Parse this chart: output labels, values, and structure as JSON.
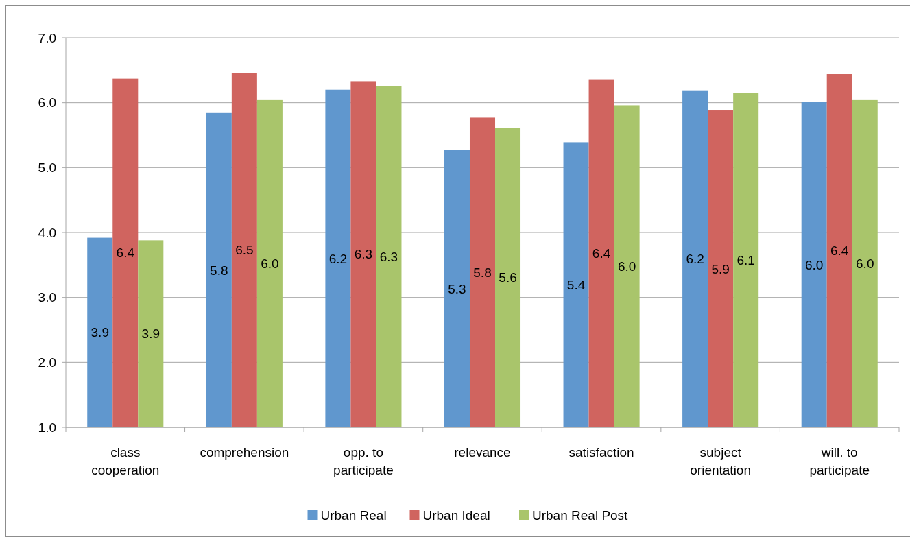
{
  "chart_data": {
    "type": "bar",
    "categories": [
      "class cooperation",
      "comprehension",
      "opp. to participate",
      "relevance",
      "satisfaction",
      "subject orientation",
      "will. to participate"
    ],
    "series": [
      {
        "name": "Urban Real",
        "color": "#6097ce",
        "values": [
          3.92,
          5.84,
          6.2,
          5.27,
          5.39,
          6.19,
          6.01
        ],
        "value_labels": [
          "3.9",
          "5.8",
          "6.2",
          "5.3",
          "5.4",
          "6.2",
          "6.0"
        ]
      },
      {
        "name": "Urban Ideal",
        "color": "#d0645f",
        "values": [
          6.37,
          6.46,
          6.33,
          5.77,
          6.36,
          5.88,
          6.44
        ],
        "value_labels": [
          "6.4",
          "6.5",
          "6.3",
          "5.8",
          "6.4",
          "5.9",
          "6.4"
        ]
      },
      {
        "name": "Urban Real Post",
        "color": "#a9c56b",
        "values": [
          3.88,
          6.04,
          6.26,
          5.61,
          5.96,
          6.15,
          6.04
        ],
        "value_labels": [
          "3.9",
          "6.0",
          "6.3",
          "5.6",
          "6.0",
          "6.1",
          "6.0"
        ]
      }
    ],
    "ylim": [
      1,
      7
    ],
    "yticks": [
      {
        "value": 1,
        "label": "1.0"
      },
      {
        "value": 2,
        "label": "2.0"
      },
      {
        "value": 3,
        "label": "3.0"
      },
      {
        "value": 4,
        "label": "4.0"
      },
      {
        "value": 5,
        "label": "5.0"
      },
      {
        "value": 6,
        "label": "6.0"
      },
      {
        "value": 7,
        "label": "7.0"
      }
    ],
    "grid": "y",
    "legend": "bottom"
  }
}
